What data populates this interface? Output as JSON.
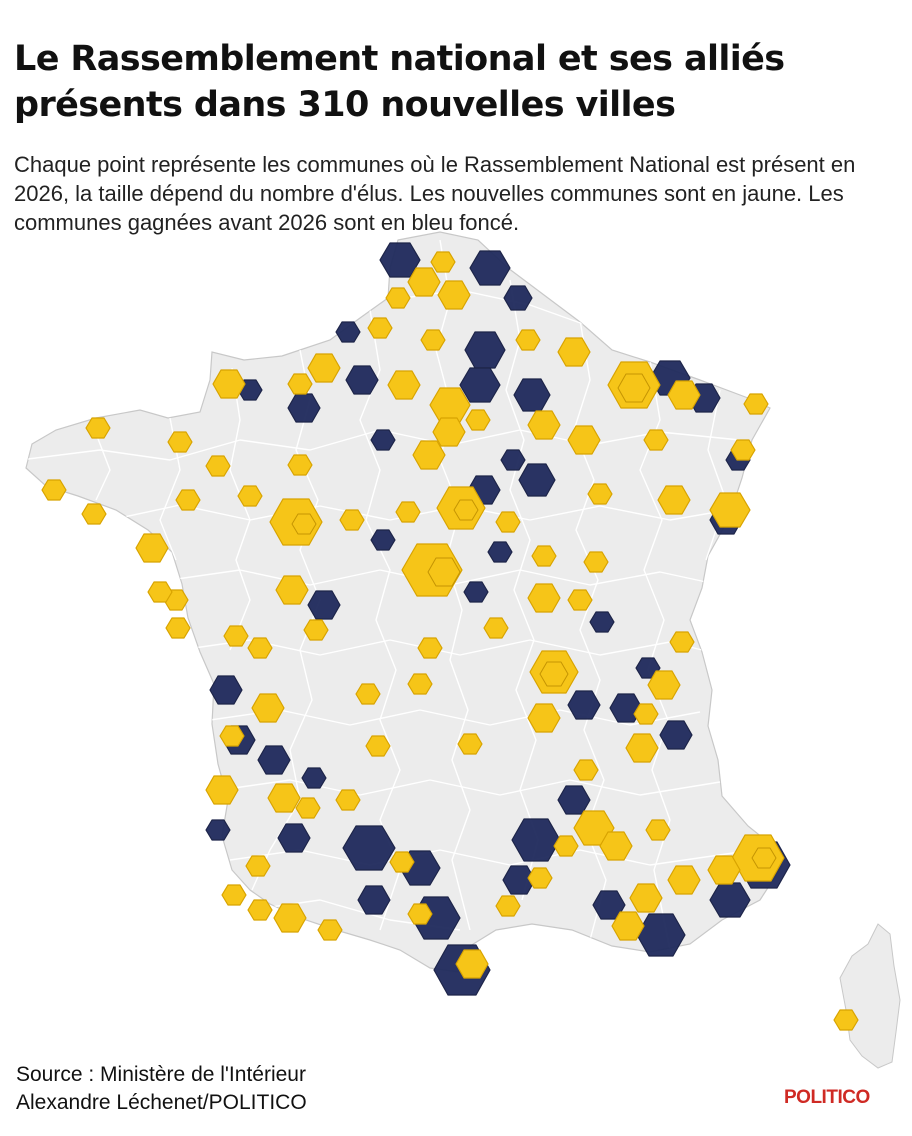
{
  "title": "Le Rassemblement national et ses alliés présents dans 310 nouvelles villes",
  "subtitle": "Chaque point représente les communes où le Rassemblement National est présent en 2026, la taille dépend du nombre d'élus. Les nouvelles communes sont en jaune. Les communes gagnées avant 2026 sont en bleu foncé.",
  "source_line": "Source : Ministère de l'Intérieur",
  "author_line": "Alexandre Léchenet/POLITICO",
  "brand": "POLITICO",
  "colors": {
    "new_communes": "#f6c518",
    "won_before_2026": "#1f2a5c",
    "land": "#ececec",
    "borders": "#ffffff"
  },
  "map_regions": [
    "France métropolitaine",
    "Corse"
  ]
}
